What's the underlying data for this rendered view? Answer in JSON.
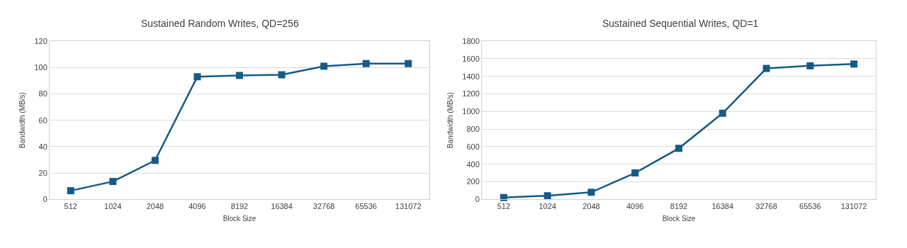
{
  "chart_data": [
    {
      "type": "line",
      "title": "Sustained Random Writes, QD=256",
      "xlabel": "Block Size",
      "ylabel": "Bandwidth (MB/s)",
      "categories": [
        "512",
        "1024",
        "2048",
        "4096",
        "8192",
        "16384",
        "32768",
        "65536",
        "131072"
      ],
      "series": [
        {
          "color": "#165a87",
          "values": [
            6.5,
            13.5,
            29.5,
            93,
            94,
            94.5,
            101,
            103,
            103
          ]
        }
      ],
      "ylim": [
        0,
        120
      ],
      "yticks": [
        0,
        20,
        40,
        60,
        80,
        100,
        120
      ],
      "grid": "y",
      "marker": "square",
      "line_style": "solid"
    },
    {
      "type": "line",
      "title": "Sustained Sequential Writes, QD=1",
      "xlabel": "Block Size",
      "ylabel": "Bandwidth (MB/s)",
      "categories": [
        "512",
        "1024",
        "2048",
        "4096",
        "8192",
        "16384",
        "32768",
        "65536",
        "131072"
      ],
      "series": [
        {
          "color": "#165a87",
          "values": [
            20,
            40,
            80,
            300,
            580,
            980,
            1490,
            1520,
            1540
          ]
        }
      ],
      "ylim": [
        0,
        1800
      ],
      "yticks": [
        0,
        200,
        400,
        600,
        800,
        1000,
        1200,
        1400,
        1600,
        1800
      ],
      "grid": "y",
      "marker": "square",
      "line_style": "solid"
    }
  ]
}
